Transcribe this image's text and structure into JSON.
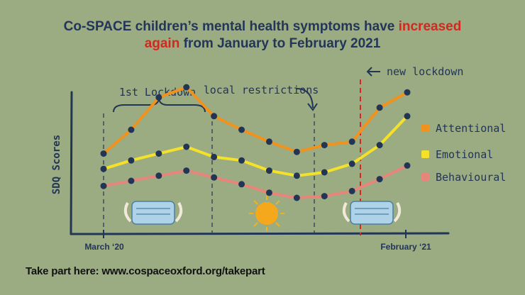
{
  "title": {
    "part1": "Co-SPACE children’s mental health symptoms have ",
    "highlight1": "increased",
    "highlight2": "again",
    "part2": " from January to February 2021"
  },
  "footer": "Take part here: www.cospaceoxford.org/takepart",
  "colors": {
    "background": "#9bab82",
    "title": "#23365a",
    "highlight": "#d4281e",
    "attentional": "#f0921c",
    "emotional": "#f4e12a",
    "behavioural": "#e8857a",
    "points": "#233555",
    "lockdown_line": "#d4281e"
  },
  "chart_data": {
    "type": "line",
    "ylabel": "SDQ Scores",
    "xlabel": "",
    "x_tick_labels": [
      "March ‘20",
      "February ‘21"
    ],
    "x": [
      0,
      1,
      2,
      3,
      4,
      5,
      6,
      7,
      8,
      9,
      10,
      11
    ],
    "series": [
      {
        "name": "Attentional",
        "values": [
          46,
          60,
          79,
          85,
          68,
          60,
          53,
          47,
          51,
          53,
          73,
          82
        ]
      },
      {
        "name": "Emotional",
        "values": [
          37,
          42,
          46,
          50,
          44,
          42,
          36,
          33,
          35,
          40,
          51,
          68
        ]
      },
      {
        "name": "Behavioural",
        "values": [
          27,
          30,
          33,
          36,
          32,
          28,
          23,
          20,
          21,
          24,
          31,
          39
        ]
      }
    ],
    "ylim": [
      0,
      100
    ],
    "grid": false,
    "legend_position": "right",
    "annotations": [
      {
        "text": "1st Lockdown",
        "span_x": [
          0,
          3.3
        ]
      },
      {
        "text": "local restrictions",
        "x": 6.4
      },
      {
        "text": "new lockdown",
        "x": 9.8
      }
    ]
  }
}
